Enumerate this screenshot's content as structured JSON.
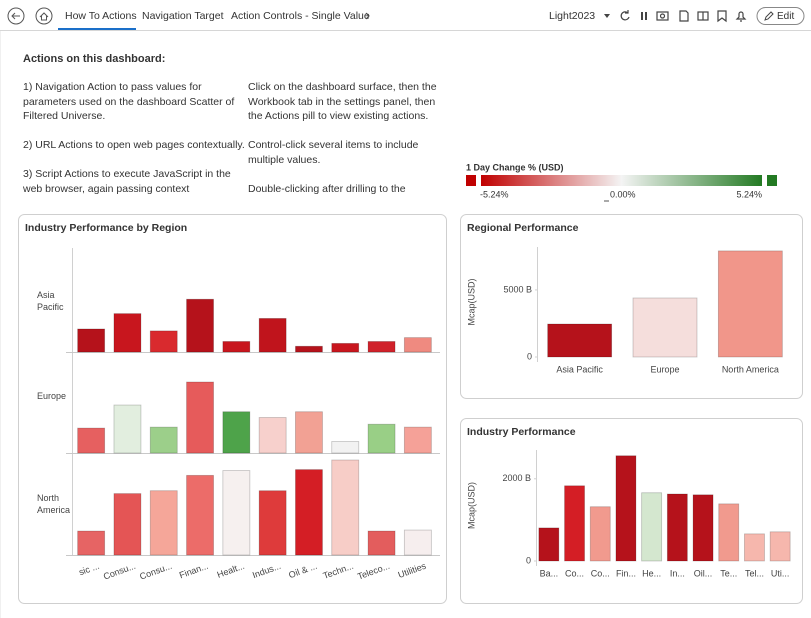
{
  "toolbar": {
    "tabs": [
      "How To Actions",
      "Navigation Target",
      "Action Controls - Single Value"
    ],
    "theme": "Light2023",
    "edit": "Edit"
  },
  "notes": {
    "heading": "Actions on this dashboard:",
    "left": [
      "1) Navigation Action to pass values for parameters used on the dashboard Scatter of Filtered Universe.",
      "2) URL Actions to open web pages contextually.",
      "3) Script Actions to execute JavaScript in the web browser, again passing context"
    ],
    "right": [
      "Click on the dashboard surface, then the Workbook tab in the settings panel, then the Actions pill to view existing actions.",
      "Control-click several items to include multiple values.",
      "Double-clicking after drilling to the"
    ]
  },
  "color_legend": {
    "title": "1 Day Change % (USD)",
    "labels": [
      "-5.24%",
      "0.00%",
      "5.24%"
    ]
  },
  "chart_data": [
    {
      "type": "bar",
      "title": "Industry Performance by Region",
      "categories": [
        "sic ...",
        "Consu...",
        "Consu...",
        "Finan...",
        "Healt...",
        "Indus...",
        "Oil & ...",
        "Techn...",
        "Teleco...",
        "Utilities"
      ],
      "series": [
        {
          "name": "Asia Pacific",
          "values": [
            24,
            40,
            22,
            55,
            11,
            35,
            6,
            9,
            11,
            15
          ],
          "colors": [
            "#b5121b",
            "#c8161e",
            "#d92a2e",
            "#b5121b",
            "#c8161e",
            "#c0141c",
            "#b5121b",
            "#c8161e",
            "#d0212a",
            "#ef8a80"
          ]
        },
        {
          "name": "Europe",
          "values": [
            26,
            50,
            27,
            74,
            43,
            37,
            43,
            12,
            30,
            27
          ],
          "colors": [
            "#e66060",
            "#e2eedf",
            "#9ccf8a",
            "#e65b5b",
            "#4ea34a",
            "#f7d0cc",
            "#f2a194",
            "#f2f2f2",
            "#99cf86",
            "#f5a198"
          ]
        },
        {
          "name": "North America",
          "values": [
            25,
            64,
            67,
            83,
            88,
            67,
            89,
            99,
            25,
            26
          ],
          "colors": [
            "#e66464",
            "#e45555",
            "#f5a699",
            "#ec6c69",
            "#f6f0ef",
            "#de3b3b",
            "#d41e25",
            "#f7cdc7",
            "#e35d5d",
            "#f6eeee"
          ]
        }
      ]
    },
    {
      "type": "bar",
      "title": "Regional Performance",
      "ylabel": "Mcap(USD)",
      "categories": [
        "Asia Pacific",
        "Europe",
        "North America"
      ],
      "values": [
        2460,
        4400,
        7910
      ],
      "colors": [
        "#b5121b",
        "#f5dedc",
        "#f1968a"
      ],
      "ylim": [
        0,
        8200
      ],
      "yticks": [
        0,
        {
          "value": 5000,
          "label": "5000 B"
        }
      ]
    },
    {
      "type": "bar",
      "title": "Industry Performance",
      "ylabel": "Mcap(USD)",
      "categories": [
        "Ba...",
        "Co...",
        "Co...",
        "Fin...",
        "He...",
        "In...",
        "Oil...",
        "Te...",
        "Tel...",
        "Uti..."
      ],
      "values": [
        805,
        1830,
        1320,
        2560,
        1660,
        1630,
        1610,
        1390,
        660,
        710
      ],
      "colors": [
        "#b5121b",
        "#d41e25",
        "#f19a8e",
        "#b5121b",
        "#d4e7cf",
        "#b5121b",
        "#b5121b",
        "#f19a8e",
        "#f6b7ad",
        "#f6b7ad"
      ],
      "ylim": [
        0,
        2700
      ],
      "yticks": [
        0,
        {
          "value": 2000,
          "label": "2000 B"
        }
      ]
    }
  ]
}
